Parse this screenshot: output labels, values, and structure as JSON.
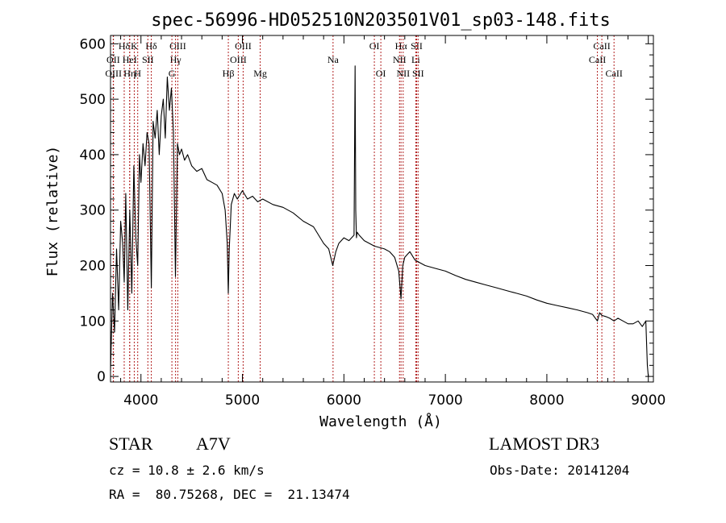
{
  "chart_data": {
    "type": "line",
    "title": "spec-56996-HD052510N203501V01_sp03-148.fits",
    "xlabel": "Wavelength (Å)",
    "ylabel": "Flux (relative)",
    "xlim": [
      3700,
      9050
    ],
    "ylim": [
      -10,
      615
    ],
    "xticks": [
      4000,
      5000,
      6000,
      7000,
      8000,
      9000
    ],
    "yticks": [
      0,
      100,
      200,
      300,
      400,
      500,
      600
    ],
    "grid": false,
    "series": [
      {
        "name": "flux",
        "x": [
          3700,
          3720,
          3740,
          3760,
          3780,
          3800,
          3820,
          3835,
          3850,
          3870,
          3890,
          3910,
          3930,
          3950,
          3968,
          3985,
          4000,
          4020,
          4040,
          4060,
          4080,
          4102,
          4120,
          4140,
          4160,
          4180,
          4200,
          4220,
          4240,
          4260,
          4280,
          4300,
          4320,
          4340,
          4360,
          4380,
          4400,
          4430,
          4460,
          4500,
          4550,
          4600,
          4650,
          4700,
          4750,
          4800,
          4830,
          4850,
          4861,
          4870,
          4890,
          4920,
          4950,
          5000,
          5050,
          5100,
          5150,
          5200,
          5300,
          5400,
          5500,
          5600,
          5700,
          5800,
          5850,
          5890,
          5920,
          5950,
          6000,
          6050,
          6100,
          6110,
          6117,
          6124,
          6130,
          6150,
          6200,
          6300,
          6400,
          6450,
          6500,
          6540,
          6563,
          6580,
          6600,
          6650,
          6700,
          6750,
          6800,
          6900,
          7000,
          7100,
          7200,
          7300,
          7400,
          7500,
          7600,
          7700,
          7800,
          7900,
          8000,
          8100,
          8200,
          8300,
          8400,
          8450,
          8498,
          8520,
          8542,
          8580,
          8620,
          8662,
          8700,
          8750,
          8800,
          8850,
          8900,
          8940,
          8975,
          8990,
          9000
        ],
        "values": [
          10,
          150,
          80,
          230,
          120,
          280,
          240,
          170,
          330,
          120,
          300,
          150,
          380,
          250,
          200,
          400,
          350,
          420,
          380,
          440,
          420,
          160,
          460,
          430,
          480,
          400,
          470,
          500,
          430,
          540,
          480,
          520,
          440,
          180,
          420,
          400,
          410,
          390,
          400,
          380,
          370,
          375,
          355,
          350,
          345,
          330,
          300,
          240,
          150,
          230,
          310,
          330,
          320,
          335,
          320,
          325,
          315,
          320,
          310,
          305,
          295,
          280,
          270,
          240,
          230,
          200,
          225,
          240,
          250,
          245,
          255,
          560,
          300,
          250,
          260,
          255,
          245,
          235,
          230,
          225,
          215,
          190,
          140,
          200,
          215,
          225,
          210,
          205,
          200,
          195,
          190,
          182,
          175,
          170,
          165,
          160,
          155,
          150,
          145,
          138,
          132,
          128,
          124,
          120,
          115,
          112,
          100,
          115,
          110,
          108,
          105,
          100,
          105,
          100,
          95,
          95,
          100,
          90,
          100,
          20,
          0
        ]
      }
    ],
    "line_marks": [
      {
        "label": "Hδ",
        "x": 3835,
        "row": 1
      },
      {
        "label": "OII",
        "x": 3727,
        "row": 2
      },
      {
        "label": "OIII",
        "x": 3729,
        "row": 3
      },
      {
        "label": "K",
        "x": 3934,
        "row": 1
      },
      {
        "label": "HeI",
        "x": 3889,
        "row": 2
      },
      {
        "label": "Hη",
        "x": 3889,
        "row": 3
      },
      {
        "label": "Hδ",
        "x": 4102,
        "row": 1
      },
      {
        "label": "SII",
        "x": 4068,
        "row": 2
      },
      {
        "label": "H",
        "x": 3968,
        "row": 3
      },
      {
        "label": "OIII",
        "x": 4363,
        "row": 1
      },
      {
        "label": "Hγ",
        "x": 4341,
        "row": 2
      },
      {
        "label": "G",
        "x": 4305,
        "row": 3
      },
      {
        "label": "OIII",
        "x": 5007,
        "row": 1
      },
      {
        "label": "OIII",
        "x": 4959,
        "row": 2
      },
      {
        "label": "Hβ",
        "x": 4861,
        "row": 3
      },
      {
        "label": "Mg",
        "x": 5175,
        "row": 3
      },
      {
        "label": "Na",
        "x": 5893,
        "row": 2
      },
      {
        "label": "OI",
        "x": 6300,
        "row": 1
      },
      {
        "label": "OI",
        "x": 6364,
        "row": 3
      },
      {
        "label": "Hα",
        "x": 6563,
        "row": 1
      },
      {
        "label": "SII",
        "x": 6717,
        "row": 1
      },
      {
        "label": "NII",
        "x": 6548,
        "row": 2
      },
      {
        "label": "Li",
        "x": 6708,
        "row": 2
      },
      {
        "label": "NII",
        "x": 6584,
        "row": 3
      },
      {
        "label": "SII",
        "x": 6731,
        "row": 3
      },
      {
        "label": "CaII",
        "x": 8542,
        "row": 1
      },
      {
        "label": "CaII",
        "x": 8498,
        "row": 2
      },
      {
        "label": "CaII",
        "x": 8662,
        "row": 3
      }
    ]
  },
  "info": {
    "class_label": "STAR",
    "subclass": "A7V",
    "survey": "LAMOST DR3",
    "cz": "cz = 10.8 ± 2.6 km/s",
    "obs_date": "Obs-Date: 20141204",
    "coords": "RA =  80.75268, DEC =  21.13474"
  }
}
